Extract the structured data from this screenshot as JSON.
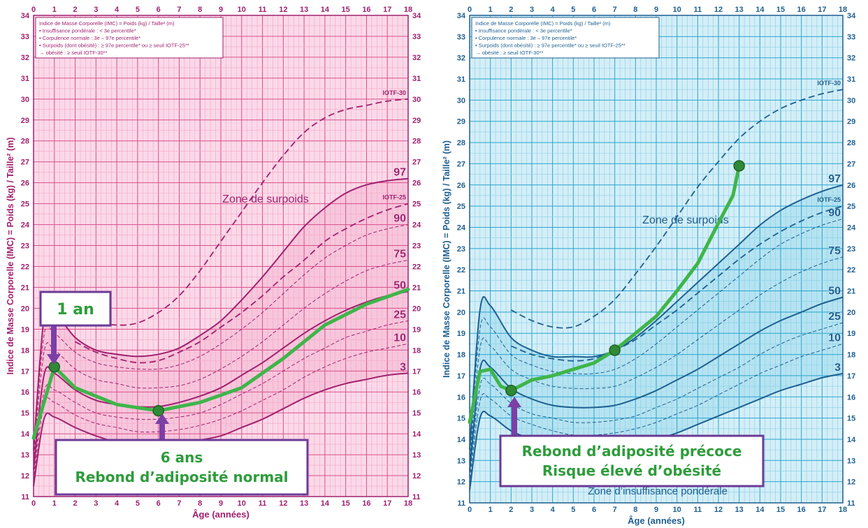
{
  "chart_data": [
    {
      "type": "line",
      "theme": "pink",
      "colors": {
        "bg": "#fbd9e8",
        "minor": "#f5a6c6",
        "major": "#d84f8a",
        "curve": "#a0206e",
        "axis": "#a0206e",
        "band": "#f6c2d9",
        "overlay": "#3fb54a",
        "callout_border": "#6b3a96",
        "callout_text": "#2e9c3b",
        "arrow": "#7b3fa6"
      },
      "xlabel": "Âge (années)",
      "ylabel": "Indice de Masse Corporelle (IMC) = Poids (kg) / Taille² (m)",
      "xlim": [
        0,
        18
      ],
      "ylim": [
        11,
        34
      ],
      "x_ticks": [
        "0",
        "1",
        "2",
        "3",
        "4",
        "5",
        "6",
        "7",
        "8",
        "9",
        "10",
        "11",
        "12",
        "13",
        "14",
        "15",
        "16",
        "17",
        "18"
      ],
      "y_ticks": [
        "11",
        "12",
        "13",
        "14",
        "15",
        "16",
        "17",
        "18",
        "19",
        "20",
        "21",
        "22",
        "23",
        "24",
        "25",
        "26",
        "27",
        "28",
        "29",
        "30",
        "31",
        "32",
        "33",
        "34"
      ],
      "legend_lines": [
        "Indice de Masse Corporelle (IMC) = Poids (kg) / Taille² (m)",
        "• Insuffisance pondérale : < 3e percentile*",
        "• Corpulence normale : 3e – 97e percentile*",
        "• Surpoids (dont obésité) : ≥ 97e percentile* ou ≥ seuil IOTF-25**",
        "→ obésité : ≥ seuil IOTF-30**"
      ],
      "zone_label": "Zone de surpoids",
      "series": [
        {
          "name": "97",
          "style": "solid",
          "x": [
            0,
            0.5,
            1,
            2,
            3,
            4,
            5,
            6,
            7,
            8,
            9,
            10,
            11,
            12,
            13,
            14,
            15,
            16,
            17,
            18
          ],
          "y": [
            13.2,
            19.5,
            19.8,
            18.6,
            18.0,
            17.8,
            17.7,
            17.8,
            18.1,
            18.7,
            19.4,
            20.4,
            21.5,
            22.7,
            23.9,
            24.8,
            25.5,
            25.9,
            26.1,
            26.2
          ]
        },
        {
          "name": "90",
          "style": "dashed-thin",
          "x": [
            0,
            0.5,
            1,
            2,
            3,
            4,
            5,
            6,
            7,
            8,
            9,
            10,
            11,
            12,
            13,
            14,
            15,
            16,
            17,
            18
          ],
          "y": [
            13.0,
            18.7,
            18.8,
            17.9,
            17.4,
            17.2,
            17.1,
            17.1,
            17.3,
            17.7,
            18.3,
            19.0,
            19.8,
            20.7,
            21.6,
            22.4,
            23.0,
            23.5,
            23.8,
            24.0
          ]
        },
        {
          "name": "75",
          "style": "dashed-thin",
          "x": [
            0,
            0.5,
            1,
            2,
            3,
            4,
            5,
            6,
            7,
            8,
            9,
            10,
            11,
            12,
            13,
            14,
            15,
            16,
            17,
            18
          ],
          "y": [
            12.7,
            17.9,
            18.0,
            17.1,
            16.6,
            16.4,
            16.2,
            16.2,
            16.3,
            16.6,
            17.1,
            17.7,
            18.4,
            19.2,
            20.0,
            20.7,
            21.3,
            21.8,
            22.1,
            22.3
          ]
        },
        {
          "name": "50",
          "style": "solid",
          "x": [
            0,
            0.5,
            1,
            2,
            3,
            4,
            5,
            6,
            7,
            8,
            9,
            10,
            11,
            12,
            13,
            14,
            15,
            16,
            17,
            18
          ],
          "y": [
            12.3,
            16.8,
            16.9,
            16.1,
            15.6,
            15.4,
            15.3,
            15.3,
            15.5,
            15.8,
            16.2,
            16.8,
            17.4,
            18.1,
            18.8,
            19.4,
            19.9,
            20.3,
            20.6,
            20.8
          ]
        },
        {
          "name": "25",
          "style": "dashed-thin",
          "x": [
            0,
            0.5,
            1,
            2,
            3,
            4,
            5,
            6,
            7,
            8,
            9,
            10,
            11,
            12,
            13,
            14,
            15,
            16,
            17,
            18
          ],
          "y": [
            12.0,
            16.0,
            16.1,
            15.5,
            15.0,
            14.8,
            14.7,
            14.7,
            14.8,
            15.0,
            15.4,
            15.9,
            16.4,
            17.0,
            17.6,
            18.1,
            18.6,
            18.9,
            19.2,
            19.4
          ]
        },
        {
          "name": "10",
          "style": "dashed-thin",
          "x": [
            0,
            0.5,
            1,
            2,
            3,
            4,
            5,
            6,
            7,
            8,
            9,
            10,
            11,
            12,
            13,
            14,
            15,
            16,
            17,
            18
          ],
          "y": [
            11.8,
            15.4,
            15.5,
            14.9,
            14.5,
            14.3,
            14.1,
            14.1,
            14.2,
            14.4,
            14.7,
            15.1,
            15.6,
            16.1,
            16.7,
            17.2,
            17.6,
            17.9,
            18.1,
            18.3
          ]
        },
        {
          "name": "3",
          "style": "solid",
          "x": [
            0,
            0.5,
            1,
            2,
            3,
            4,
            5,
            6,
            7,
            8,
            9,
            10,
            11,
            12,
            13,
            14,
            15,
            16,
            17,
            18
          ],
          "y": [
            11.5,
            14.7,
            14.8,
            14.3,
            13.9,
            13.6,
            13.5,
            13.4,
            13.5,
            13.7,
            13.9,
            14.3,
            14.7,
            15.2,
            15.7,
            16.1,
            16.4,
            16.6,
            16.8,
            16.9
          ]
        },
        {
          "name": "IOTF-25",
          "style": "dashed",
          "x": [
            2,
            3,
            4,
            5,
            6,
            7,
            8,
            9,
            10,
            11,
            12,
            13,
            14,
            15,
            16,
            17,
            18
          ],
          "y": [
            18.4,
            17.9,
            17.6,
            17.4,
            17.5,
            17.9,
            18.4,
            19.1,
            19.8,
            20.6,
            21.5,
            22.3,
            23.2,
            23.8,
            24.3,
            24.7,
            25.0
          ]
        },
        {
          "name": "IOTF-30",
          "style": "dashed",
          "x": [
            2,
            3,
            4,
            5,
            6,
            7,
            8,
            9,
            10,
            11,
            12,
            13,
            14,
            15,
            16,
            17,
            18
          ],
          "y": [
            20.0,
            19.4,
            19.2,
            19.3,
            19.8,
            20.6,
            21.8,
            23.2,
            24.6,
            26.0,
            27.3,
            28.4,
            29.1,
            29.5,
            29.7,
            29.9,
            30.0
          ]
        },
        {
          "name": "child",
          "style": "overlay",
          "x": [
            0,
            1,
            2,
            4,
            6,
            8,
            10,
            12,
            14,
            16,
            18
          ],
          "y": [
            13.8,
            17.2,
            16.2,
            15.4,
            15.1,
            15.5,
            16.2,
            17.6,
            19.2,
            20.2,
            20.9
          ]
        }
      ],
      "markers": [
        {
          "x": 1,
          "y": 17.2
        },
        {
          "x": 6,
          "y": 15.1
        }
      ],
      "callouts": [
        {
          "lines": [
            "1 an"
          ]
        },
        {
          "lines": [
            "6 ans",
            "Rebond d’adiposité normal"
          ]
        }
      ]
    },
    {
      "type": "line",
      "theme": "blue",
      "colors": {
        "bg": "#d4eef7",
        "minor": "#87cfe6",
        "major": "#28a6cf",
        "curve": "#1d5f91",
        "axis": "#1d5f91",
        "band": "#b0e0f0",
        "overlay": "#3fb54a",
        "callout_border": "#6b3a96",
        "callout_text": "#2e9c3b",
        "arrow": "#7b3fa6"
      },
      "xlabel": "Âge (années)",
      "ylabel": "Indice de Masse Corporelle (IMC) = Poids (kg) / Taille² (m)",
      "xlim": [
        0,
        18
      ],
      "ylim": [
        11,
        34
      ],
      "x_ticks": [
        "0",
        "1",
        "2",
        "3",
        "4",
        "5",
        "6",
        "7",
        "8",
        "9",
        "10",
        "11",
        "12",
        "13",
        "14",
        "15",
        "16",
        "17",
        "18"
      ],
      "y_ticks": [
        "11",
        "12",
        "13",
        "14",
        "15",
        "16",
        "17",
        "18",
        "19",
        "20",
        "21",
        "22",
        "23",
        "24",
        "25",
        "26",
        "27",
        "28",
        "29",
        "30",
        "31",
        "32",
        "33",
        "34"
      ],
      "legend_lines": [
        "Indice de Masse Corporelle (IMC) = Poids (kg) / Taille² (m)",
        "• Insuffisance pondérale : < 3e percentile*",
        "• Corpulence normale : 3e – 97e percentile*",
        "• Surpoids (dont obésité) : ≥ 97e percentile* ou ≥ seuil IOTF-25**",
        "→ obésité : ≥ seuil IOTF-30**"
      ],
      "zone_label": "Zone de surpoids",
      "zone_label_2": "Zone d’insuffisance pondérale",
      "series": [
        {
          "name": "97",
          "style": "solid",
          "x": [
            0,
            0.5,
            1,
            2,
            3,
            4,
            5,
            6,
            7,
            8,
            9,
            10,
            11,
            12,
            13,
            14,
            15,
            16,
            17,
            18
          ],
          "y": [
            13.5,
            20.1,
            20.3,
            18.8,
            18.2,
            17.9,
            17.9,
            17.9,
            18.2,
            18.8,
            19.6,
            20.5,
            21.4,
            22.3,
            23.2,
            24.1,
            24.8,
            25.3,
            25.7,
            26.0
          ]
        },
        {
          "name": "90",
          "style": "dashed-thin",
          "x": [
            0,
            0.5,
            1,
            2,
            3,
            4,
            5,
            6,
            7,
            8,
            9,
            10,
            11,
            12,
            13,
            14,
            15,
            16,
            17,
            18
          ],
          "y": [
            13.2,
            19.2,
            19.3,
            18.0,
            17.5,
            17.2,
            17.1,
            17.1,
            17.3,
            17.8,
            18.5,
            19.3,
            20.1,
            20.9,
            21.7,
            22.5,
            23.2,
            23.7,
            24.1,
            24.4
          ]
        },
        {
          "name": "75",
          "style": "dashed-thin",
          "x": [
            0,
            0.5,
            1,
            2,
            3,
            4,
            5,
            6,
            7,
            8,
            9,
            10,
            11,
            12,
            13,
            14,
            15,
            16,
            17,
            18
          ],
          "y": [
            12.9,
            18.3,
            18.4,
            17.3,
            16.8,
            16.5,
            16.4,
            16.4,
            16.5,
            16.9,
            17.4,
            18.0,
            18.7,
            19.4,
            20.1,
            20.8,
            21.4,
            21.9,
            22.3,
            22.6
          ]
        },
        {
          "name": "50",
          "style": "solid",
          "x": [
            0,
            0.5,
            1,
            2,
            3,
            4,
            5,
            6,
            7,
            8,
            9,
            10,
            11,
            12,
            13,
            14,
            15,
            16,
            17,
            18
          ],
          "y": [
            12.5,
            17.3,
            17.4,
            16.4,
            15.9,
            15.6,
            15.5,
            15.5,
            15.6,
            15.9,
            16.3,
            16.8,
            17.3,
            17.9,
            18.5,
            19.1,
            19.6,
            20.0,
            20.4,
            20.7
          ]
        },
        {
          "name": "25",
          "style": "dashed-thin",
          "x": [
            0,
            0.5,
            1,
            2,
            3,
            4,
            5,
            6,
            7,
            8,
            9,
            10,
            11,
            12,
            13,
            14,
            15,
            16,
            17,
            18
          ],
          "y": [
            12.2,
            16.5,
            16.6,
            15.7,
            15.2,
            15.0,
            14.8,
            14.8,
            14.9,
            15.1,
            15.5,
            15.9,
            16.4,
            16.9,
            17.4,
            18.0,
            18.5,
            18.9,
            19.2,
            19.5
          ]
        },
        {
          "name": "10",
          "style": "dashed-thin",
          "x": [
            0,
            0.5,
            1,
            2,
            3,
            4,
            5,
            6,
            7,
            8,
            9,
            10,
            11,
            12,
            13,
            14,
            15,
            16,
            17,
            18
          ],
          "y": [
            11.9,
            15.8,
            15.9,
            15.1,
            14.7,
            14.4,
            14.2,
            14.2,
            14.3,
            14.5,
            14.8,
            15.2,
            15.6,
            16.1,
            16.6,
            17.1,
            17.5,
            17.9,
            18.2,
            18.5
          ]
        },
        {
          "name": "3",
          "style": "solid",
          "x": [
            0,
            0.5,
            1,
            2,
            3,
            4,
            5,
            6,
            7,
            8,
            9,
            10,
            11,
            12,
            13,
            14,
            15,
            16,
            17,
            18
          ],
          "y": [
            11.6,
            15.0,
            15.1,
            14.4,
            14.0,
            13.7,
            13.6,
            13.5,
            13.6,
            13.8,
            14.0,
            14.3,
            14.7,
            15.1,
            15.5,
            15.9,
            16.3,
            16.6,
            16.9,
            17.1
          ]
        },
        {
          "name": "IOTF-25",
          "style": "dashed",
          "x": [
            2,
            3,
            4,
            5,
            6,
            7,
            8,
            9,
            10,
            11,
            12,
            13,
            14,
            15,
            16,
            17,
            18
          ],
          "y": [
            18.4,
            18.0,
            17.8,
            17.7,
            17.8,
            18.2,
            18.7,
            19.4,
            20.1,
            20.9,
            21.7,
            22.5,
            23.2,
            23.8,
            24.3,
            24.7,
            25.0
          ]
        },
        {
          "name": "IOTF-30",
          "style": "dashed",
          "x": [
            2,
            3,
            4,
            5,
            6,
            7,
            8,
            9,
            10,
            11,
            12,
            13,
            14,
            15,
            16,
            17,
            18
          ],
          "y": [
            20.1,
            19.6,
            19.3,
            19.3,
            19.8,
            20.6,
            21.8,
            23.1,
            24.5,
            25.9,
            27.1,
            28.2,
            29.0,
            29.6,
            30.0,
            30.3,
            30.5
          ]
        },
        {
          "name": "child",
          "style": "overlay",
          "x": [
            0,
            0.5,
            1,
            1.5,
            2,
            3,
            4,
            5,
            6,
            7,
            8,
            9,
            10,
            11,
            12,
            12.7,
            13
          ],
          "y": [
            14.8,
            17.2,
            17.3,
            16.5,
            16.3,
            16.8,
            17.0,
            17.3,
            17.6,
            18.2,
            19.0,
            19.8,
            21.0,
            22.3,
            24.2,
            25.5,
            26.9
          ]
        }
      ],
      "markers": [
        {
          "x": 2,
          "y": 16.3
        },
        {
          "x": 7,
          "y": 18.2
        },
        {
          "x": 13,
          "y": 26.9
        }
      ],
      "callouts": [
        {
          "lines": [
            "Rebond d’adiposité précoce",
            "Risque élevé d’obésité"
          ]
        }
      ]
    }
  ]
}
